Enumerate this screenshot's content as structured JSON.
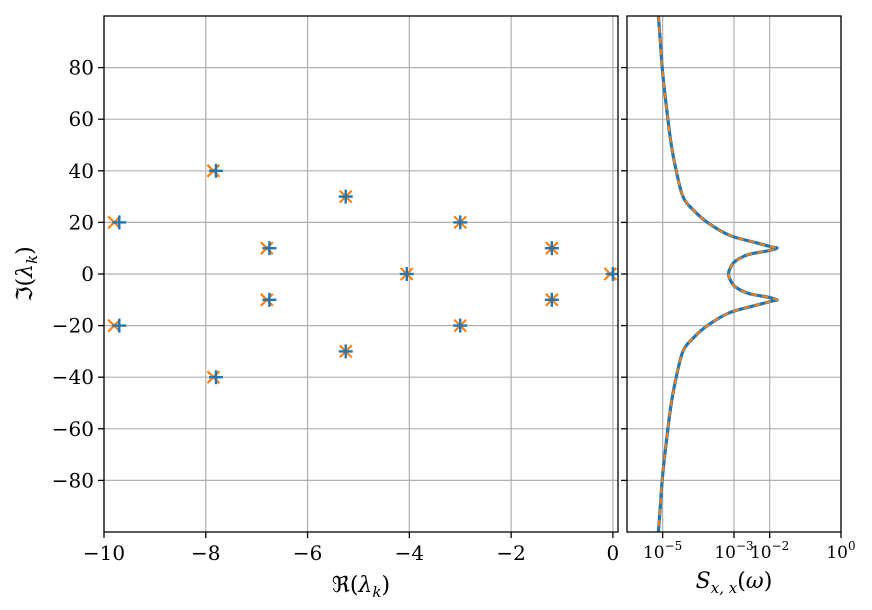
{
  "chart_data": [
    {
      "type": "scatter",
      "xlabel": "ℜ(λ_k)",
      "ylabel": "ℑ(λ_k)",
      "xlim": [
        -10,
        0.1
      ],
      "ylim": [
        -100,
        100
      ],
      "xticks": [
        -10,
        -8,
        -6,
        -4,
        -2,
        0
      ],
      "yticks": [
        -80,
        -60,
        -40,
        -20,
        0,
        20,
        40,
        60,
        80
      ],
      "grid": true,
      "colors": {
        "plus": "#1f77b4",
        "cross": "#ff7f0e"
      },
      "series": [
        {
          "marker": "plus",
          "points": [
            [
              -9.7,
              20
            ],
            [
              -9.7,
              -20
            ],
            [
              -7.8,
              40
            ],
            [
              -7.8,
              -40
            ],
            [
              -6.75,
              10
            ],
            [
              -6.75,
              -10
            ],
            [
              -5.25,
              30
            ],
            [
              -5.25,
              -30
            ],
            [
              -4.05,
              0
            ],
            [
              -3.0,
              20
            ],
            [
              -3.0,
              -20
            ],
            [
              -1.2,
              10
            ],
            [
              -1.2,
              -10
            ],
            [
              0.0,
              0
            ]
          ]
        },
        {
          "marker": "cross",
          "points": [
            [
              -9.8,
              20
            ],
            [
              -9.8,
              -20
            ],
            [
              -7.85,
              40
            ],
            [
              -7.85,
              -40
            ],
            [
              -6.8,
              10
            ],
            [
              -6.8,
              -10
            ],
            [
              -5.25,
              30
            ],
            [
              -5.25,
              -30
            ],
            [
              -4.05,
              0
            ],
            [
              -3.0,
              20
            ],
            [
              -3.0,
              -20
            ],
            [
              -1.2,
              10
            ],
            [
              -1.2,
              -10
            ],
            [
              -0.05,
              0
            ]
          ]
        }
      ]
    },
    {
      "type": "line",
      "xlabel": "S_{x,x}(ω)",
      "xscale": "log",
      "xlim": [
        1e-06,
        1
      ],
      "ylim": [
        -100,
        100
      ],
      "xticks": [
        "10^-5",
        "10^-3",
        "10^-2",
        "10^0"
      ],
      "grid": true,
      "colors": {
        "solid": "#1f77b4",
        "dashed": "#ff7f0e"
      },
      "series": [
        {
          "style": "solid",
          "points": [
            [
              7.6e-06,
              100
            ],
            [
              8.6e-06,
              90
            ],
            [
              9.7e-06,
              80
            ],
            [
              1.15e-05,
              70
            ],
            [
              1.4e-05,
              60
            ],
            [
              1.75e-05,
              50
            ],
            [
              2.4e-05,
              40
            ],
            [
              3.7e-05,
              30
            ],
            [
              7e-05,
              25
            ],
            [
              0.00018,
              20
            ],
            [
              0.00075,
              15
            ],
            [
              0.0045,
              12
            ],
            [
              0.0115,
              10.5
            ],
            [
              0.016,
              10
            ],
            [
              0.009,
              9
            ],
            [
              0.0025,
              7.5
            ],
            [
              0.0011,
              5
            ],
            [
              0.0008,
              2.5
            ],
            [
              0.0007,
              0
            ],
            [
              0.0008,
              -2.5
            ],
            [
              0.0011,
              -5
            ],
            [
              0.0025,
              -7.5
            ],
            [
              0.009,
              -9
            ],
            [
              0.016,
              -10
            ],
            [
              0.0115,
              -10.5
            ],
            [
              0.0045,
              -12
            ],
            [
              0.00075,
              -15
            ],
            [
              0.00018,
              -20
            ],
            [
              7e-05,
              -25
            ],
            [
              3.7e-05,
              -30
            ],
            [
              2.4e-05,
              -40
            ],
            [
              1.75e-05,
              -50
            ],
            [
              1.4e-05,
              -60
            ],
            [
              1.15e-05,
              -70
            ],
            [
              9.7e-06,
              -80
            ],
            [
              8.6e-06,
              -90
            ],
            [
              7.6e-06,
              -100
            ]
          ]
        },
        {
          "style": "dashed",
          "same_as": "solid"
        }
      ]
    }
  ]
}
